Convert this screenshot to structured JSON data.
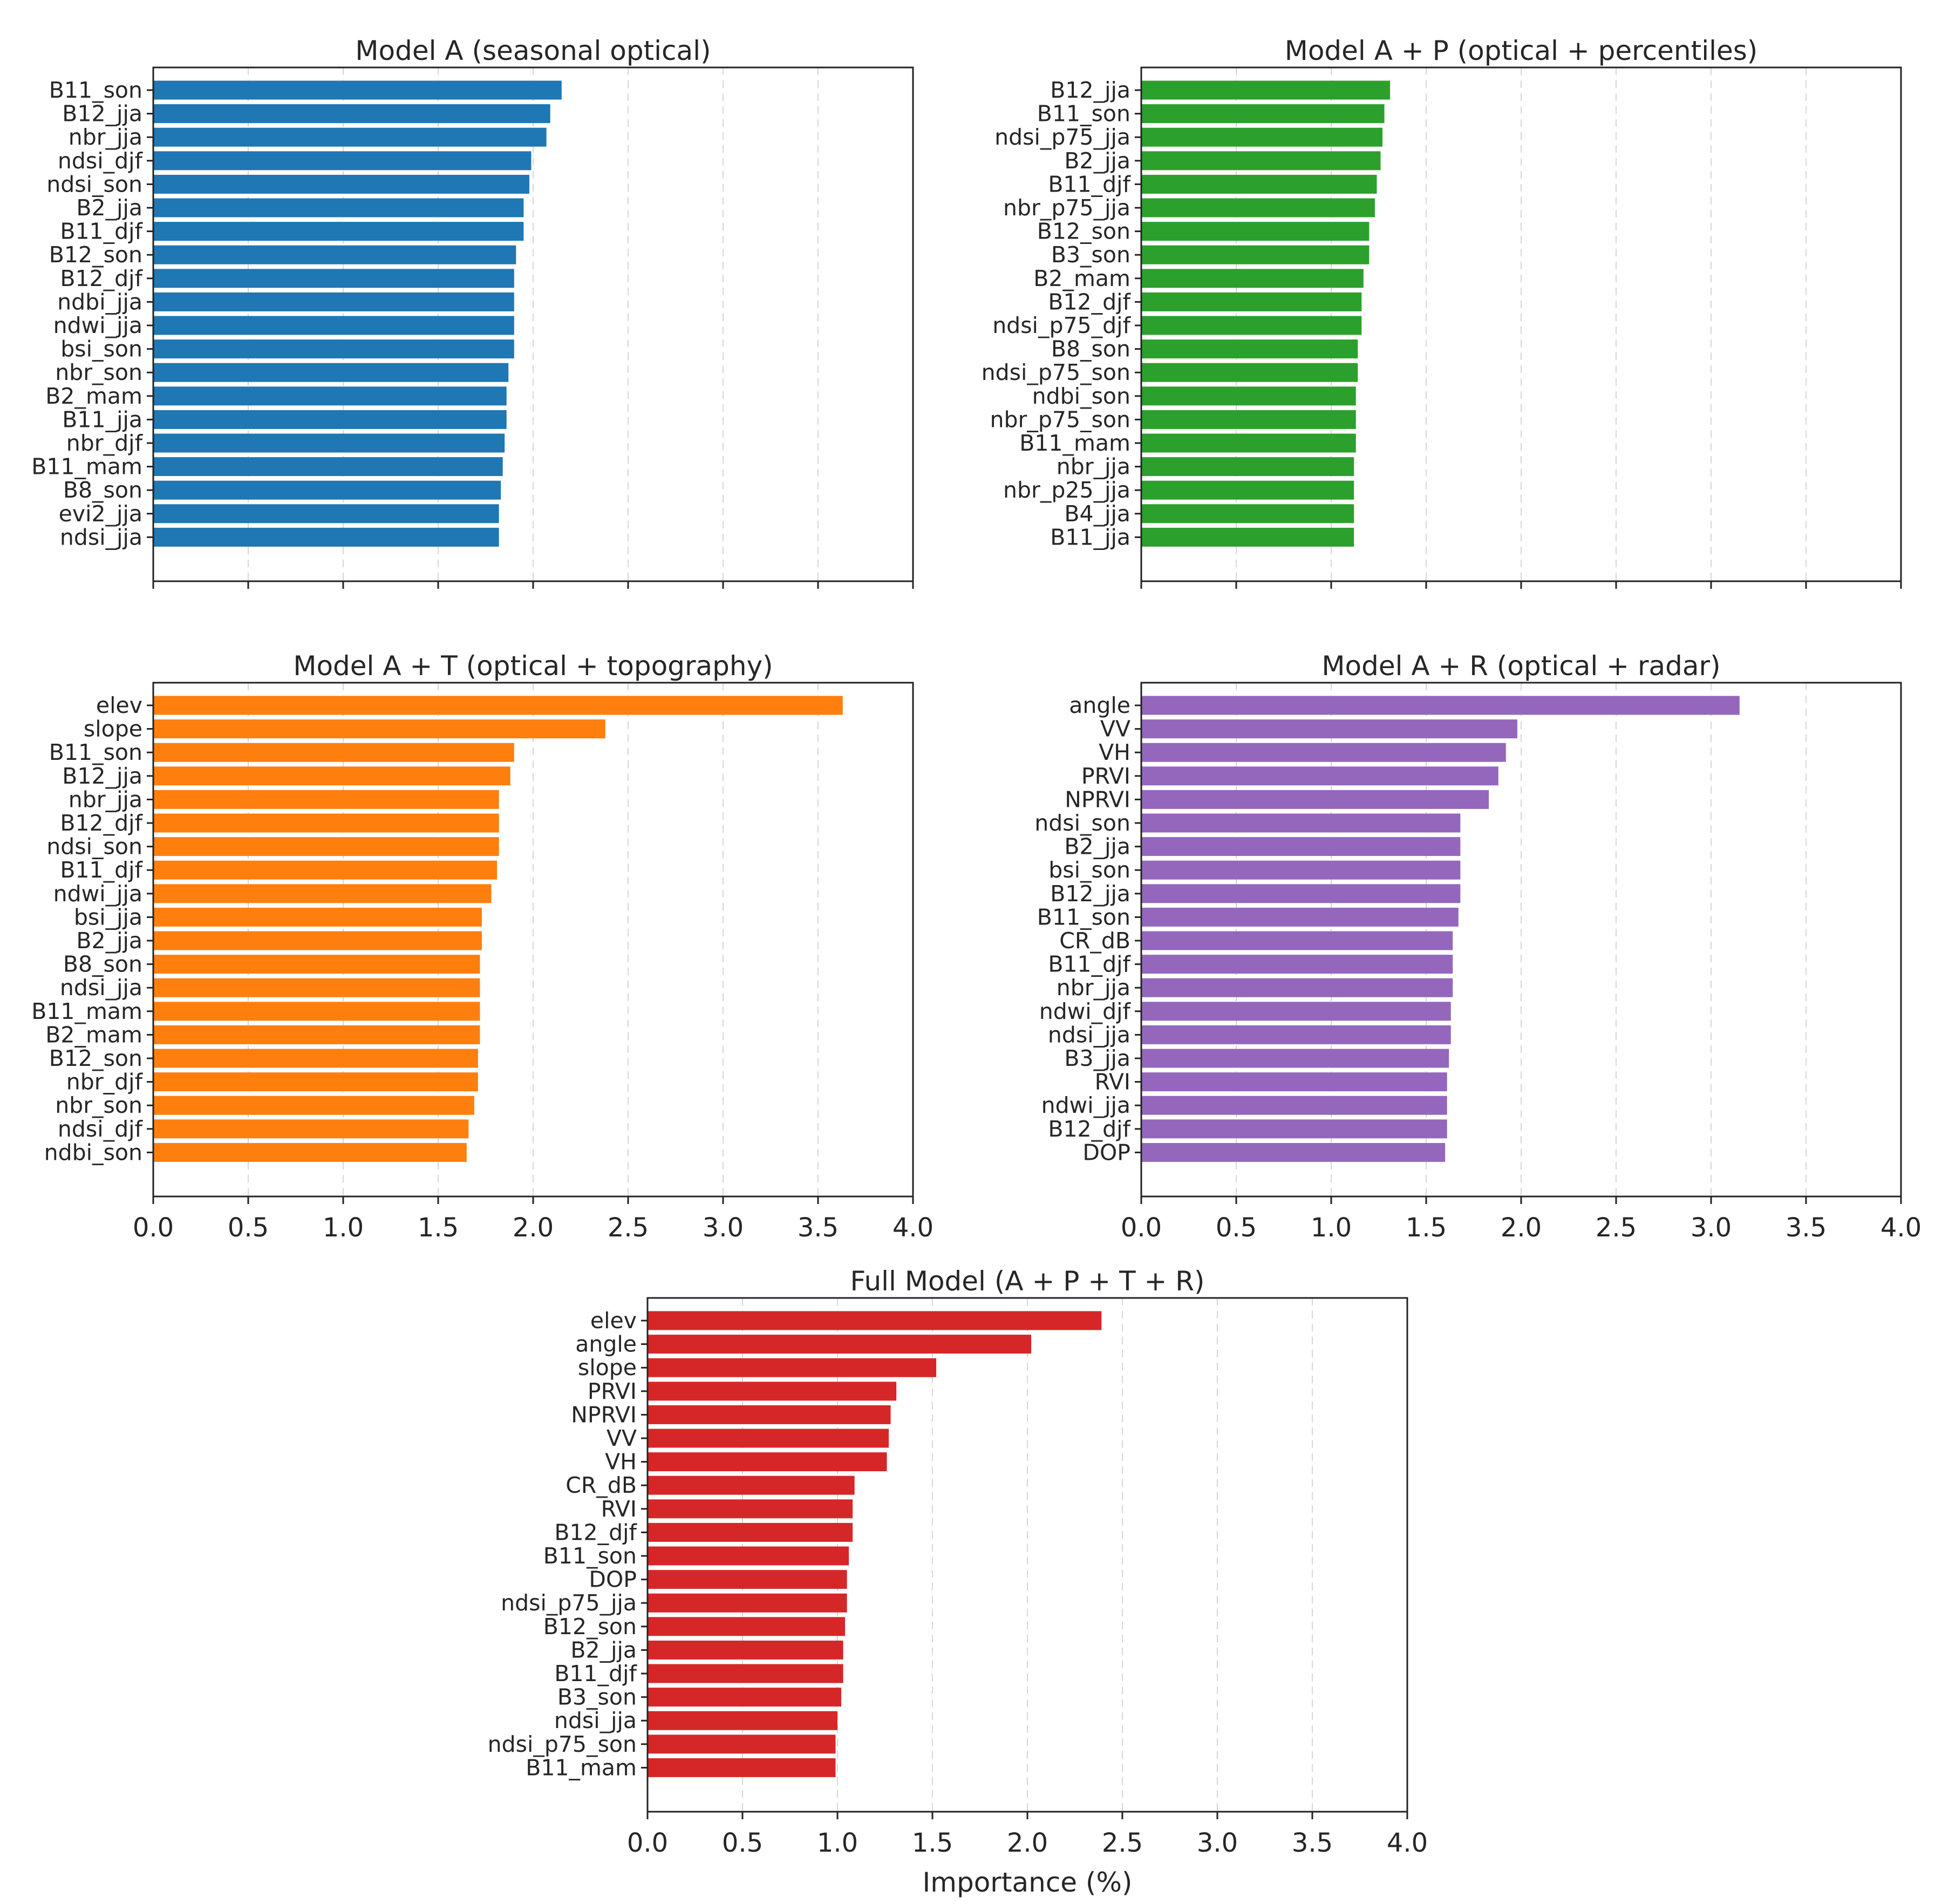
{
  "chart_data": [
    {
      "type": "bar",
      "orientation": "horizontal",
      "title": "Model A (seasonal optical)",
      "color": "#1f77b4",
      "xlim": [
        0,
        4.0
      ],
      "xticks": [
        "0.0",
        "0.5",
        "1.0",
        "1.5",
        "2.0",
        "2.5",
        "3.0",
        "3.5",
        "4.0"
      ],
      "show_xtick_labels": false,
      "xlabel": "",
      "grid": "x-dashed",
      "categories": [
        "B11_son",
        "B12_jja",
        "nbr_jja",
        "ndsi_djf",
        "ndsi_son",
        "B2_jja",
        "B11_djf",
        "B12_son",
        "B12_djf",
        "ndbi_jja",
        "ndwi_jja",
        "bsi_son",
        "nbr_son",
        "B2_mam",
        "B11_jja",
        "nbr_djf",
        "B11_mam",
        "B8_son",
        "evi2_jja",
        "ndsi_jja"
      ],
      "values": [
        2.15,
        2.09,
        2.07,
        1.99,
        1.98,
        1.95,
        1.95,
        1.91,
        1.9,
        1.9,
        1.9,
        1.9,
        1.87,
        1.86,
        1.86,
        1.85,
        1.84,
        1.83,
        1.82,
        1.82
      ]
    },
    {
      "type": "bar",
      "orientation": "horizontal",
      "title": "Model A + P (optical + percentiles)",
      "color": "#2ca02c",
      "xlim": [
        0,
        4.0
      ],
      "xticks": [
        "0.0",
        "0.5",
        "1.0",
        "1.5",
        "2.0",
        "2.5",
        "3.0",
        "3.5",
        "4.0"
      ],
      "show_xtick_labels": false,
      "xlabel": "",
      "grid": "x-dashed",
      "categories": [
        "B12_jja",
        "B11_son",
        "ndsi_p75_jja",
        "B2_jja",
        "B11_djf",
        "nbr_p75_jja",
        "B12_son",
        "B3_son",
        "B2_mam",
        "B12_djf",
        "ndsi_p75_djf",
        "B8_son",
        "ndsi_p75_son",
        "ndbi_son",
        "nbr_p75_son",
        "B11_mam",
        "nbr_jja",
        "nbr_p25_jja",
        "B4_jja",
        "B11_jja"
      ],
      "values": [
        1.31,
        1.28,
        1.27,
        1.26,
        1.24,
        1.23,
        1.2,
        1.2,
        1.17,
        1.16,
        1.16,
        1.14,
        1.14,
        1.13,
        1.13,
        1.13,
        1.12,
        1.12,
        1.12,
        1.12
      ]
    },
    {
      "type": "bar",
      "orientation": "horizontal",
      "title": "Model A + T (optical + topography)",
      "color": "#ff7f0e",
      "xlim": [
        0,
        4.0
      ],
      "xticks": [
        "0.0",
        "0.5",
        "1.0",
        "1.5",
        "2.0",
        "2.5",
        "3.0",
        "3.5",
        "4.0"
      ],
      "show_xtick_labels": true,
      "xlabel": "",
      "grid": "x-dashed",
      "categories": [
        "elev",
        "slope",
        "B11_son",
        "B12_jja",
        "nbr_jja",
        "B12_djf",
        "ndsi_son",
        "B11_djf",
        "ndwi_jja",
        "bsi_jja",
        "B2_jja",
        "B8_son",
        "ndsi_jja",
        "B11_mam",
        "B2_mam",
        "B12_son",
        "nbr_djf",
        "nbr_son",
        "ndsi_djf",
        "ndbi_son"
      ],
      "values": [
        3.63,
        2.38,
        1.9,
        1.88,
        1.82,
        1.82,
        1.82,
        1.81,
        1.78,
        1.73,
        1.73,
        1.72,
        1.72,
        1.72,
        1.72,
        1.71,
        1.71,
        1.69,
        1.66,
        1.65
      ]
    },
    {
      "type": "bar",
      "orientation": "horizontal",
      "title": "Model A + R (optical + radar)",
      "color": "#9467bd",
      "xlim": [
        0,
        4.0
      ],
      "xticks": [
        "0.0",
        "0.5",
        "1.0",
        "1.5",
        "2.0",
        "2.5",
        "3.0",
        "3.5",
        "4.0"
      ],
      "show_xtick_labels": true,
      "xlabel": "",
      "grid": "x-dashed",
      "categories": [
        "angle",
        "VV",
        "VH",
        "PRVI",
        "NPRVI",
        "ndsi_son",
        "B2_jja",
        "bsi_son",
        "B12_jja",
        "B11_son",
        "CR_dB",
        "B11_djf",
        "nbr_jja",
        "ndwi_djf",
        "ndsi_jja",
        "B3_jja",
        "RVI",
        "ndwi_jja",
        "B12_djf",
        "DOP"
      ],
      "values": [
        3.15,
        1.98,
        1.92,
        1.88,
        1.83,
        1.68,
        1.68,
        1.68,
        1.68,
        1.67,
        1.64,
        1.64,
        1.64,
        1.63,
        1.63,
        1.62,
        1.61,
        1.61,
        1.61,
        1.6
      ]
    },
    {
      "type": "bar",
      "orientation": "horizontal",
      "title": "Full Model (A + P + T + R)",
      "color": "#d62728",
      "xlim": [
        0,
        4.0
      ],
      "xticks": [
        "0.0",
        "0.5",
        "1.0",
        "1.5",
        "2.0",
        "2.5",
        "3.0",
        "3.5",
        "4.0"
      ],
      "show_xtick_labels": true,
      "xlabel": "Importance (%)",
      "grid": "x-dashed",
      "categories": [
        "elev",
        "angle",
        "slope",
        "PRVI",
        "NPRVI",
        "VV",
        "VH",
        "CR_dB",
        "RVI",
        "B12_djf",
        "B11_son",
        "DOP",
        "ndsi_p75_jja",
        "B12_son",
        "B2_jja",
        "B11_djf",
        "B3_son",
        "ndsi_jja",
        "ndsi_p75_son",
        "B11_mam"
      ],
      "values": [
        2.39,
        2.02,
        1.52,
        1.31,
        1.28,
        1.27,
        1.26,
        1.09,
        1.08,
        1.08,
        1.06,
        1.05,
        1.05,
        1.04,
        1.03,
        1.03,
        1.02,
        1.0,
        0.99,
        0.99
      ]
    }
  ]
}
